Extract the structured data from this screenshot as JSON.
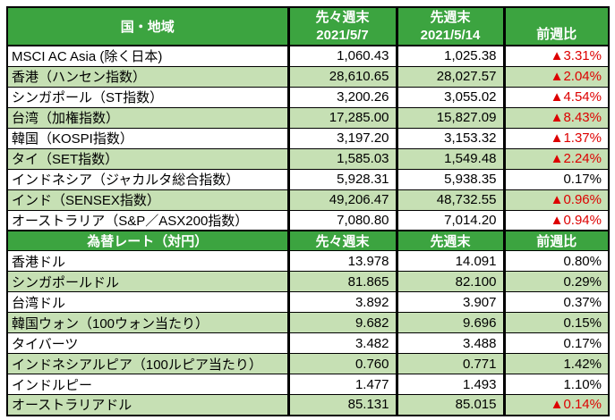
{
  "colors": {
    "header_green": "#3ca440",
    "row_alt_green": "#c6e0b4",
    "negative_red": "#dd0000",
    "border_black": "#000000"
  },
  "indices_table": {
    "header": {
      "region": "国・地域",
      "week_before_last_label": "先々週末",
      "week_before_last_date": "2021/5/7",
      "last_week_label": "先週末",
      "last_week_date": "2021/5/14",
      "wow_label": "前週比"
    },
    "rows": [
      {
        "label": "MSCI AC Asia (除く日本)",
        "week_before_last": "1,060.43",
        "last_week": "1,025.38",
        "wow": "▲3.31%",
        "negative": true
      },
      {
        "label": "香港（ハンセン指数）",
        "week_before_last": "28,610.65",
        "last_week": "28,027.57",
        "wow": "▲2.04%",
        "negative": true
      },
      {
        "label": "シンガポール（ST指数）",
        "week_before_last": "3,200.26",
        "last_week": "3,055.02",
        "wow": "▲4.54%",
        "negative": true
      },
      {
        "label": "台湾（加権指数）",
        "week_before_last": "17,285.00",
        "last_week": "15,827.09",
        "wow": "▲8.43%",
        "negative": true
      },
      {
        "label": "韓国（KOSPI指数）",
        "week_before_last": "3,197.20",
        "last_week": "3,153.32",
        "wow": "▲1.37%",
        "negative": true
      },
      {
        "label": "タイ（SET指数）",
        "week_before_last": "1,585.03",
        "last_week": "1,549.48",
        "wow": "▲2.24%",
        "negative": true
      },
      {
        "label": "インドネシア（ジャカルタ総合指数）",
        "week_before_last": "5,928.31",
        "last_week": "5,938.35",
        "wow": "0.17%",
        "negative": false
      },
      {
        "label": "インド（SENSEX指数）",
        "week_before_last": "49,206.47",
        "last_week": "48,732.55",
        "wow": "▲0.96%",
        "negative": true
      },
      {
        "label": "オーストラリア（S&P／ASX200指数）",
        "week_before_last": "7,080.80",
        "last_week": "7,014.20",
        "wow": "▲0.94%",
        "negative": true
      }
    ]
  },
  "fx_table": {
    "header": {
      "title": "為替レート（対円）",
      "week_before_last_label": "先々週末",
      "last_week_label": "先週末",
      "wow_label": "前週比"
    },
    "rows": [
      {
        "label": "香港ドル",
        "week_before_last": "13.978",
        "last_week": "14.091",
        "wow": "0.80%",
        "negative": false
      },
      {
        "label": "シンガポールドル",
        "week_before_last": "81.865",
        "last_week": "82.100",
        "wow": "0.29%",
        "negative": false
      },
      {
        "label": "台湾ドル",
        "week_before_last": "3.892",
        "last_week": "3.907",
        "wow": "0.37%",
        "negative": false
      },
      {
        "label": "韓国ウォン（100ウォン当たり）",
        "week_before_last": "9.682",
        "last_week": "9.696",
        "wow": "0.15%",
        "negative": false
      },
      {
        "label": "タイバーツ",
        "week_before_last": "3.482",
        "last_week": "3.488",
        "wow": "0.17%",
        "negative": false
      },
      {
        "label": "インドネシアルピア（100ルピア当たり）",
        "week_before_last": "0.760",
        "last_week": "0.771",
        "wow": "1.42%",
        "negative": false
      },
      {
        "label": "インドルピー",
        "week_before_last": "1.477",
        "last_week": "1.493",
        "wow": "1.10%",
        "negative": false
      },
      {
        "label": "オーストラリアドル",
        "week_before_last": "85.131",
        "last_week": "85.015",
        "wow": "▲0.14%",
        "negative": true
      }
    ]
  },
  "chart_data": [
    {
      "type": "table",
      "title": "国・地域 (株価指数)",
      "columns": [
        "国・地域",
        "先々週末 2021/5/7",
        "先週末 2021/5/14",
        "前週比"
      ],
      "rows": [
        [
          "MSCI AC Asia (除く日本)",
          1060.43,
          1025.38,
          "▲3.31%"
        ],
        [
          "香港（ハンセン指数）",
          28610.65,
          28027.57,
          "▲2.04%"
        ],
        [
          "シンガポール（ST指数）",
          3200.26,
          3055.02,
          "▲4.54%"
        ],
        [
          "台湾（加権指数）",
          17285.0,
          15827.09,
          "▲8.43%"
        ],
        [
          "韓国（KOSPI指数）",
          3197.2,
          3153.32,
          "▲1.37%"
        ],
        [
          "タイ（SET指数）",
          1585.03,
          1549.48,
          "▲2.24%"
        ],
        [
          "インドネシア（ジャカルタ総合指数）",
          5928.31,
          5938.35,
          "0.17%"
        ],
        [
          "インド（SENSEX指数）",
          49206.47,
          48732.55,
          "▲0.96%"
        ],
        [
          "オーストラリア（S&P／ASX200指数）",
          7080.8,
          7014.2,
          "▲0.94%"
        ]
      ]
    },
    {
      "type": "table",
      "title": "為替レート（対円）",
      "columns": [
        "為替レート（対円）",
        "先々週末",
        "先週末",
        "前週比"
      ],
      "rows": [
        [
          "香港ドル",
          13.978,
          14.091,
          "0.80%"
        ],
        [
          "シンガポールドル",
          81.865,
          82.1,
          "0.29%"
        ],
        [
          "台湾ドル",
          3.892,
          3.907,
          "0.37%"
        ],
        [
          "韓国ウォン（100ウォン当たり）",
          9.682,
          9.696,
          "0.15%"
        ],
        [
          "タイバーツ",
          3.482,
          3.488,
          "0.17%"
        ],
        [
          "インドネシアルピア（100ルピア当たり）",
          0.76,
          0.771,
          "1.42%"
        ],
        [
          "インドルピー",
          1.477,
          1.493,
          "1.10%"
        ],
        [
          "オーストラリアドル",
          85.131,
          85.015,
          "▲0.14%"
        ]
      ]
    }
  ]
}
